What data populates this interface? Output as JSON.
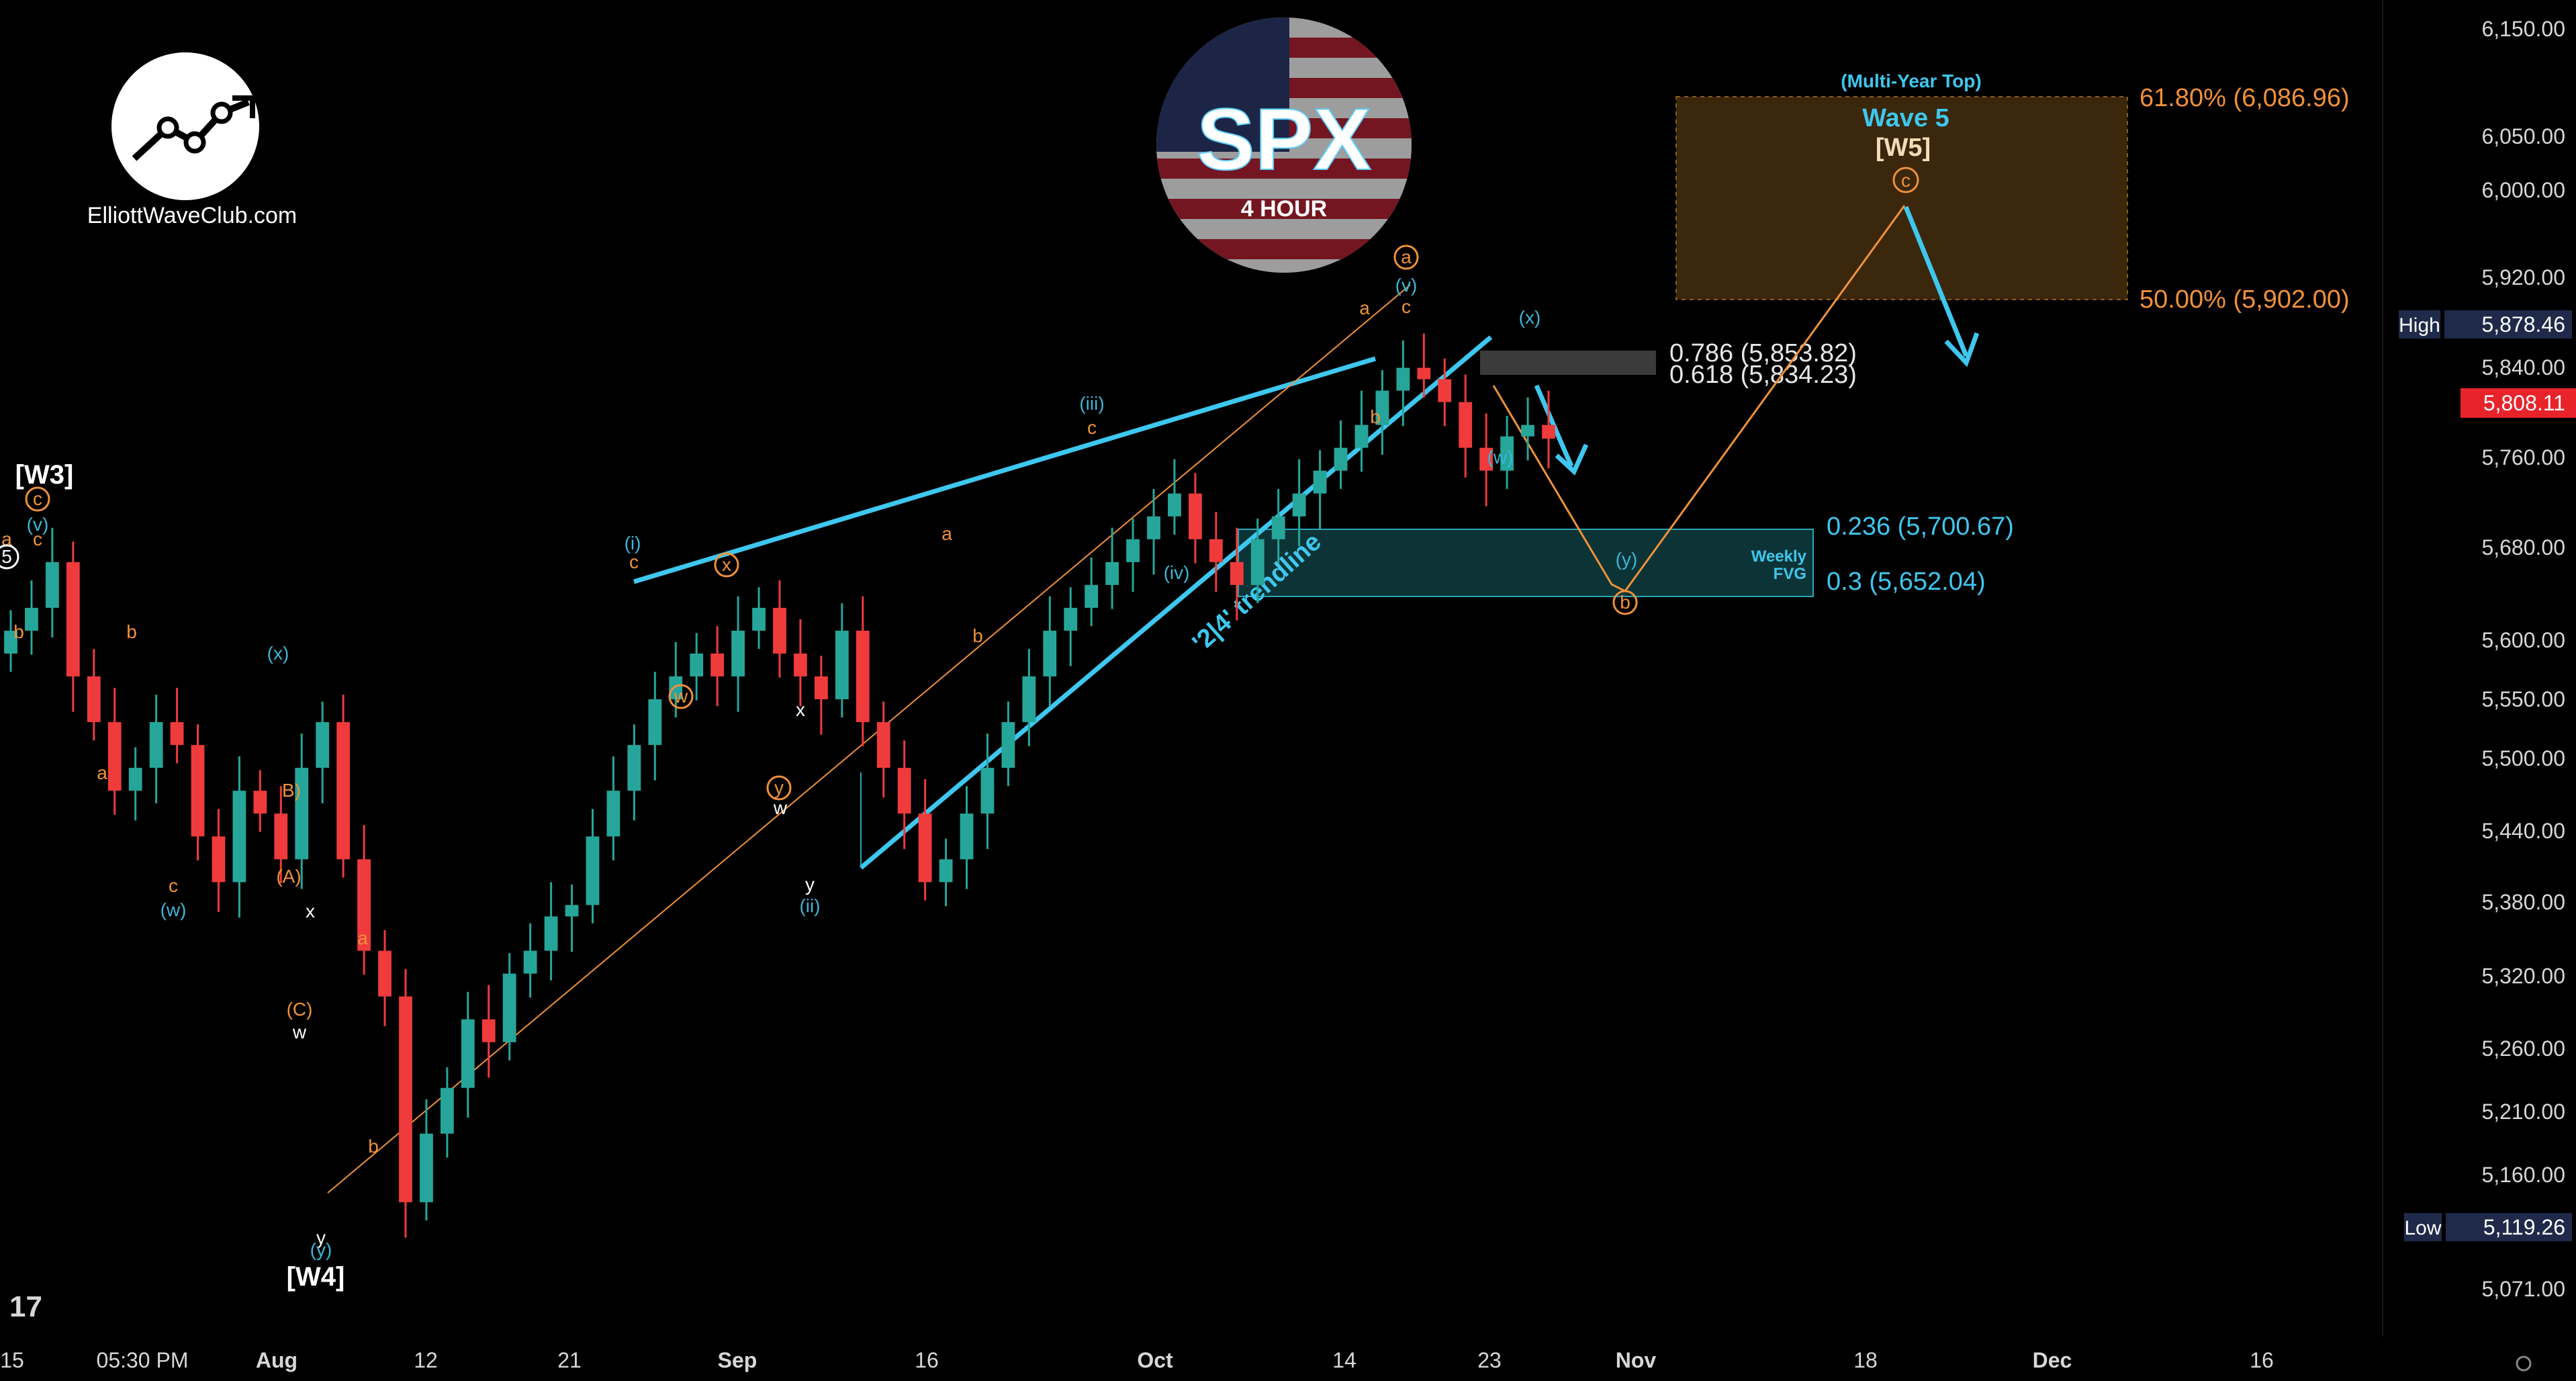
{
  "brand": {
    "name": "ElliottWaveClub.com"
  },
  "badge": {
    "symbol": "SPX",
    "timeframe": "4 HOUR"
  },
  "price_axis": {
    "ticks": [
      "6,150.00",
      "6,050.00",
      "6,000.00",
      "5,920.00",
      "5,840.00",
      "5,760.00",
      "5,680.00",
      "5,600.00",
      "5,550.00",
      "5,500.00",
      "5,440.00",
      "5,380.00",
      "5,320.00",
      "5,260.00",
      "5,210.00",
      "5,160.00",
      "5,071.00"
    ],
    "high_label": "High",
    "high_value": "5,878.46",
    "last_value": "5,808.11",
    "low_label": "Low",
    "low_value": "5,119.26"
  },
  "time_axis": {
    "labels": [
      {
        "text": "15",
        "strong": false
      },
      {
        "text": "05:30 PM",
        "strong": false
      },
      {
        "text": "Aug",
        "strong": true
      },
      {
        "text": "12",
        "strong": false
      },
      {
        "text": "21",
        "strong": false
      },
      {
        "text": "Sep",
        "strong": true
      },
      {
        "text": "16",
        "strong": false
      },
      {
        "text": "Oct",
        "strong": true
      },
      {
        "text": "14",
        "strong": false
      },
      {
        "text": "23",
        "strong": false
      },
      {
        "text": "Nov",
        "strong": true
      },
      {
        "text": "18",
        "strong": false
      },
      {
        "text": "Dec",
        "strong": true
      },
      {
        "text": "16",
        "strong": false
      }
    ]
  },
  "zones": {
    "target_title": "(Multi-Year Top)",
    "target_wave": "Wave 5",
    "target_w5": "[W5]",
    "target_c": "c",
    "fib_618": "61.80% (6,086.96)",
    "fib_50": "50.00% (5,902.00)",
    "retr_786": "0.786 (5,853.82)",
    "retr_618": "0.618 (5,834.23)",
    "fvg_236": "0.236 (5,700.67)",
    "fvg_03": "0.3 (5,652.04)",
    "fvg_label_1": "Weekly",
    "fvg_label_2": "FVG",
    "trendline_label": "'2|4' trendline"
  },
  "wave_labels": [
    {
      "text": "[W3]",
      "color": "#ffffff",
      "kind": "bold"
    },
    {
      "text": "c",
      "color": "#f0913a",
      "kind": "circle"
    },
    {
      "text": "(v)",
      "color": "#3bb6d8",
      "kind": "plain"
    },
    {
      "text": "a",
      "color": "#f0913a",
      "kind": "plain"
    },
    {
      "text": "c",
      "color": "#f0913a",
      "kind": "plain"
    },
    {
      "text": "5",
      "color": "#ffffff",
      "kind": "circle"
    },
    {
      "text": "b",
      "color": "#f0913a",
      "kind": "plain"
    },
    {
      "text": "b",
      "color": "#f0913a",
      "kind": "plain"
    },
    {
      "text": "a",
      "color": "#f0913a",
      "kind": "plain"
    },
    {
      "text": "c",
      "color": "#f0913a",
      "kind": "plain"
    },
    {
      "text": "(w)",
      "color": "#3bb6d8",
      "kind": "plain"
    },
    {
      "text": "(x)",
      "color": "#3bb6d8",
      "kind": "plain"
    },
    {
      "text": "B)",
      "color": "#f0913a",
      "kind": "plain"
    },
    {
      "text": "(A)",
      "color": "#f0913a",
      "kind": "plain"
    },
    {
      "text": "x",
      "color": "#ffffff",
      "kind": "plain"
    },
    {
      "text": "(C)",
      "color": "#f0913a",
      "kind": "plain"
    },
    {
      "text": "w",
      "color": "#ffffff",
      "kind": "plain"
    },
    {
      "text": "a",
      "color": "#f0913a",
      "kind": "plain"
    },
    {
      "text": "b",
      "color": "#f0913a",
      "kind": "plain"
    },
    {
      "text": "y",
      "color": "#ffffff",
      "kind": "plain"
    },
    {
      "text": "(y)",
      "color": "#3bb6d8",
      "kind": "plain"
    },
    {
      "text": "[W4]",
      "color": "#ffffff",
      "kind": "bold"
    },
    {
      "text": "(i)",
      "color": "#3bb6d8",
      "kind": "plain"
    },
    {
      "text": "c",
      "color": "#f0913a",
      "kind": "plain"
    },
    {
      "text": "x",
      "color": "#f0913a",
      "kind": "circle"
    },
    {
      "text": "w",
      "color": "#f0913a",
      "kind": "circle"
    },
    {
      "text": "x",
      "color": "#ffffff",
      "kind": "plain"
    },
    {
      "text": "y",
      "color": "#f0913a",
      "kind": "circle"
    },
    {
      "text": "w",
      "color": "#ffffff",
      "kind": "plain"
    },
    {
      "text": "y",
      "color": "#ffffff",
      "kind": "plain"
    },
    {
      "text": "(ii)",
      "color": "#3bb6d8",
      "kind": "plain"
    },
    {
      "text": "a",
      "color": "#f0913a",
      "kind": "plain"
    },
    {
      "text": "b",
      "color": "#f0913a",
      "kind": "plain"
    },
    {
      "text": "(iii)",
      "color": "#3bb6d8",
      "kind": "plain"
    },
    {
      "text": "c",
      "color": "#f0913a",
      "kind": "plain"
    },
    {
      "text": "(iv)",
      "color": "#3bb6d8",
      "kind": "plain"
    },
    {
      "text": "a",
      "color": "#f0913a",
      "kind": "plain"
    },
    {
      "text": "b",
      "color": "#f0913a",
      "kind": "plain"
    },
    {
      "text": "a",
      "color": "#f0913a",
      "kind": "circle"
    },
    {
      "text": "(v)",
      "color": "#3bb6d8",
      "kind": "plain"
    },
    {
      "text": "c",
      "color": "#f0913a",
      "kind": "plain"
    },
    {
      "text": "(x)",
      "color": "#3bb6d8",
      "kind": "plain"
    },
    {
      "text": "(w)",
      "color": "#3bb6d8",
      "kind": "plain"
    },
    {
      "text": "(y)",
      "color": "#3bb6d8",
      "kind": "plain"
    },
    {
      "text": "b",
      "color": "#f0913a",
      "kind": "circle"
    }
  ],
  "colors": {
    "up": "#26a69a",
    "down": "#ef3b3b",
    "cyan": "#3ec7ef",
    "orange": "#f0913a",
    "fvg_fill": "#0d3b3f",
    "target_fill": "#3d2a0d"
  },
  "chart_data": {
    "type": "candlestick",
    "title": "SPX 4 HOUR",
    "y_scale": "linear",
    "ylim": [
      5040,
      6180
    ],
    "closes_approx": [
      5640,
      5660,
      5700,
      5600,
      5560,
      5500,
      5520,
      5560,
      5540,
      5460,
      5420,
      5500,
      5480,
      5440,
      5520,
      5560,
      5440,
      5360,
      5320,
      5140,
      5200,
      5240,
      5300,
      5280,
      5340,
      5360,
      5390,
      5400,
      5460,
      5500,
      5540,
      5580,
      5600,
      5620,
      5600,
      5640,
      5660,
      5620,
      5600,
      5580,
      5640,
      5560,
      5520,
      5480,
      5420,
      5440,
      5480,
      5520,
      5560,
      5600,
      5640,
      5660,
      5680,
      5700,
      5720,
      5740,
      5760,
      5720,
      5700,
      5680,
      5720,
      5740,
      5760,
      5780,
      5800,
      5820,
      5850,
      5870,
      5860,
      5840,
      5800,
      5780,
      5810,
      5820,
      5808
    ],
    "levels": {
      "fib_618": 6086.96,
      "fib_50": 5902.0,
      "retr_786": 5853.82,
      "retr_618": 5834.23,
      "fvg_236": 5700.67,
      "fvg_03": 5652.04,
      "high": 5878.46,
      "low": 5119.26,
      "last": 5808.11
    }
  }
}
